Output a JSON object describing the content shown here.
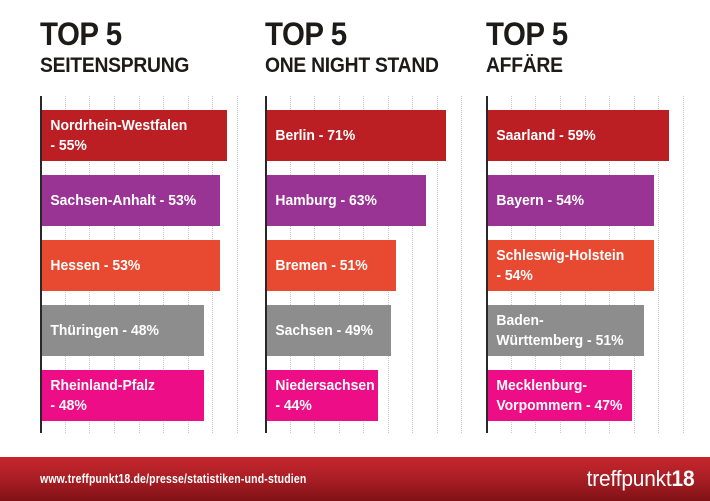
{
  "chart_data": [
    {
      "type": "bar",
      "orientation": "horizontal",
      "title": "TOP 5",
      "subtitle": "SEITENSPRUNG",
      "categories": [
        "Nordrhein-Westfalen",
        "Sachsen-Anhalt",
        "Hessen",
        "Thüringen",
        "Rheinland-Pfalz"
      ],
      "values": [
        55,
        53,
        53,
        48,
        48
      ],
      "unit": "%",
      "labels": [
        "Nordrhein-Westfalen\n- 55%",
        "Sachsen-Anhalt - 53%",
        "Hessen - 53%",
        "Thüringen - 48%",
        "Rheinland-Pfalz\n- 48%"
      ],
      "bar_colors": [
        "#bb1f24",
        "#993494",
        "#e84a31",
        "#8e8d8d",
        "#ec0d87"
      ],
      "xlim": [
        0,
        58.5
      ],
      "grid": "dotted-vertical",
      "legend": "none"
    },
    {
      "type": "bar",
      "orientation": "horizontal",
      "title": "TOP 5",
      "subtitle": "ONE NIGHT STAND",
      "categories": [
        "Berlin",
        "Hamburg",
        "Bremen",
        "Sachsen",
        "Niedersachsen"
      ],
      "values": [
        71,
        63,
        51,
        49,
        44
      ],
      "unit": "%",
      "labels": [
        "Berlin - 71%",
        "Hamburg - 63%",
        "Bremen - 51%",
        "Sachsen - 49%",
        "Niedersachsen\n- 44%"
      ],
      "bar_colors": [
        "#bb1f24",
        "#993494",
        "#e84a31",
        "#8e8d8d",
        "#ec0d87"
      ],
      "xlim": [
        0,
        77.7
      ],
      "grid": "dotted-vertical",
      "legend": "none"
    },
    {
      "type": "bar",
      "orientation": "horizontal",
      "title": "TOP 5",
      "subtitle": "AFFÄRE",
      "categories": [
        "Saarland",
        "Bayern",
        "Schleswig-Holstein",
        "Baden-Württemberg",
        "Mecklenburg-Vorpommern"
      ],
      "values": [
        59,
        54,
        54,
        51,
        47
      ],
      "unit": "%",
      "labels": [
        "Saarland - 59%",
        "Bayern - 54%",
        "Schleswig-Holstein\n- 54%",
        "Baden-\nWürttemberg - 51%",
        "Mecklenburg-\nVorpommern - 47%"
      ],
      "bar_colors": [
        "#bb1f24",
        "#993494",
        "#e84a31",
        "#8e8d8d",
        "#ec0d87"
      ],
      "xlim": [
        0,
        64.2
      ],
      "grid": "dotted-vertical",
      "legend": "none"
    }
  ],
  "styles": {
    "axis_color": "#2b2728",
    "gridline_color": "#c6c6c6",
    "title_color": "#1c1b19",
    "bar_label_color": "#ffffff"
  },
  "footer": {
    "url": "www.treffpunkt18.de/presse/statistiken-und-studien",
    "logo_regular": "treffpunkt",
    "logo_bold": "18",
    "gradient_top": "#c7272e",
    "gradient_mid": "#a51d23",
    "gradient_bottom": "#7f1216"
  }
}
